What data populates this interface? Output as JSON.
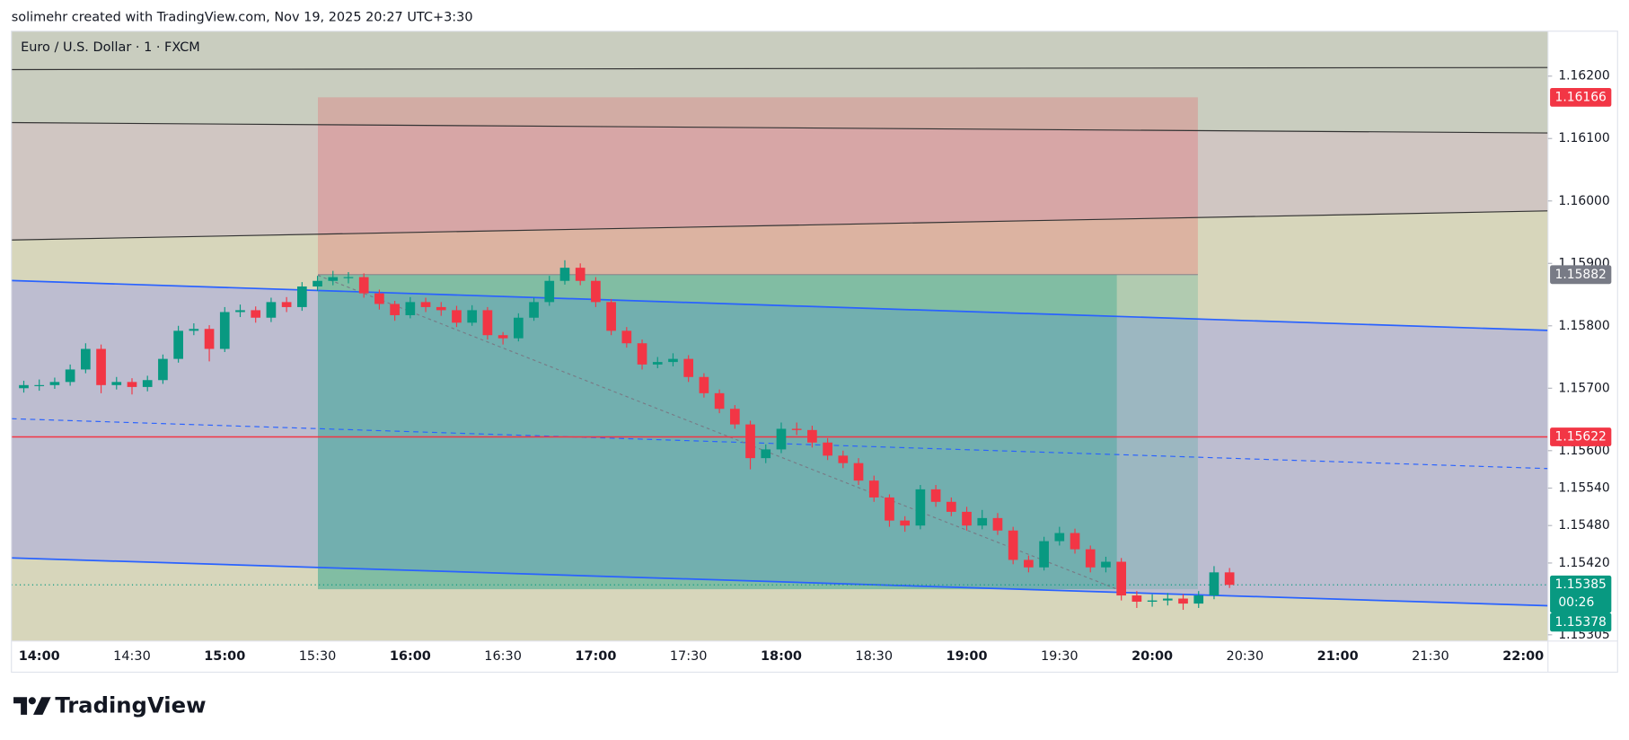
{
  "header": {
    "attribution": "solimehr created with TradingView.com, Nov 19, 2025 20:27 UTC+3:30",
    "logo": "TradingView"
  },
  "chart_data": {
    "type": "candlestick",
    "title": "Euro / U.S. Dollar · 1 · FXCM",
    "up_color": "#089981",
    "down_color": "#f23645",
    "x": [
      "13:55",
      "14:00",
      "14:05",
      "14:10",
      "14:15",
      "14:20",
      "14:25",
      "14:30",
      "14:35",
      "14:40",
      "14:45",
      "14:50",
      "14:55",
      "15:00",
      "15:05",
      "15:10",
      "15:15",
      "15:20",
      "15:25",
      "15:30",
      "15:35",
      "15:40",
      "15:45",
      "15:50",
      "15:55",
      "16:00",
      "16:05",
      "16:10",
      "16:15",
      "16:20",
      "16:25",
      "16:30",
      "16:35",
      "16:40",
      "16:45",
      "16:50",
      "16:55",
      "17:00",
      "17:05",
      "17:10",
      "17:15",
      "17:20",
      "17:25",
      "17:30",
      "17:35",
      "17:40",
      "17:45",
      "17:50",
      "17:55",
      "18:00",
      "18:05",
      "18:10",
      "18:15",
      "18:20",
      "18:25",
      "18:30",
      "18:35",
      "18:40",
      "18:45",
      "18:50",
      "18:55",
      "19:00",
      "19:05",
      "19:10",
      "19:15",
      "19:20",
      "19:25",
      "19:30",
      "19:35",
      "19:40",
      "19:45",
      "19:50",
      "19:55",
      "20:00",
      "20:05",
      "20:10",
      "20:15",
      "20:20",
      "20:25"
    ],
    "open": [
      1.157,
      1.15705,
      1.15705,
      1.1571,
      1.1573,
      1.15763,
      1.15705,
      1.1571,
      1.15702,
      1.15713,
      1.15747,
      1.15792,
      1.15795,
      1.15763,
      1.15822,
      1.15825,
      1.15813,
      1.15838,
      1.1583,
      1.15863,
      1.15872,
      1.15878,
      1.15878,
      1.15852,
      1.15835,
      1.15817,
      1.15838,
      1.1583,
      1.15825,
      1.15805,
      1.15825,
      1.15785,
      1.1578,
      1.15813,
      1.15838,
      1.15872,
      1.15893,
      1.15872,
      1.15838,
      1.15792,
      1.15772,
      1.15738,
      1.15742,
      1.15747,
      1.15718,
      1.15692,
      1.15667,
      1.15642,
      1.15588,
      1.15602,
      1.15635,
      1.15633,
      1.15613,
      1.15592,
      1.1558,
      1.15552,
      1.15525,
      1.15488,
      1.1548,
      1.15538,
      1.15518,
      1.15502,
      1.1548,
      1.15492,
      1.15472,
      1.15425,
      1.15413,
      1.15455,
      1.15468,
      1.15442,
      1.15413,
      1.15422,
      1.15368,
      1.15358,
      1.1536,
      1.15363,
      1.15355,
      1.15368,
      1.15405
    ],
    "high": [
      1.15712,
      1.15714,
      1.15717,
      1.15738,
      1.15772,
      1.1577,
      1.15718,
      1.15716,
      1.1572,
      1.15754,
      1.158,
      1.15804,
      1.15801,
      1.1583,
      1.15834,
      1.15831,
      1.15845,
      1.15846,
      1.1587,
      1.1588,
      1.15888,
      1.15886,
      1.15884,
      1.15858,
      1.1584,
      1.15846,
      1.15845,
      1.15838,
      1.15832,
      1.15833,
      1.1583,
      1.1579,
      1.1582,
      1.15845,
      1.1588,
      1.15905,
      1.159,
      1.15878,
      1.15843,
      1.15798,
      1.15778,
      1.1575,
      1.15756,
      1.15753,
      1.15724,
      1.15698,
      1.15673,
      1.15648,
      1.1561,
      1.15645,
      1.15645,
      1.1564,
      1.1562,
      1.156,
      1.15588,
      1.1556,
      1.1553,
      1.15495,
      1.15545,
      1.15545,
      1.15525,
      1.1551,
      1.15505,
      1.155,
      1.15478,
      1.15432,
      1.15462,
      1.15478,
      1.15475,
      1.15448,
      1.1543,
      1.15428,
      1.15375,
      1.1537,
      1.15372,
      1.1537,
      1.15375,
      1.15415,
      1.15412
    ],
    "low": [
      1.15693,
      1.15696,
      1.15699,
      1.15704,
      1.15724,
      1.15692,
      1.15698,
      1.1569,
      1.15695,
      1.15707,
      1.15741,
      1.15785,
      1.15743,
      1.15758,
      1.15814,
      1.15805,
      1.15806,
      1.15822,
      1.15824,
      1.15856,
      1.15865,
      1.15868,
      1.15845,
      1.15826,
      1.15808,
      1.15812,
      1.15822,
      1.15816,
      1.15798,
      1.158,
      1.15778,
      1.1577,
      1.15775,
      1.15808,
      1.15832,
      1.15866,
      1.15865,
      1.1583,
      1.15785,
      1.15765,
      1.1573,
      1.15732,
      1.15735,
      1.1571,
      1.15685,
      1.1566,
      1.15635,
      1.1557,
      1.1558,
      1.15596,
      1.15625,
      1.15605,
      1.15585,
      1.15572,
      1.15545,
      1.15518,
      1.15478,
      1.1547,
      1.15474,
      1.1551,
      1.15495,
      1.15472,
      1.15474,
      1.15465,
      1.15418,
      1.15405,
      1.15408,
      1.15448,
      1.15435,
      1.15405,
      1.15405,
      1.1536,
      1.15348,
      1.1535,
      1.15352,
      1.15345,
      1.15348,
      1.15362,
      1.1538
    ],
    "close": [
      1.15705,
      1.15705,
      1.1571,
      1.1573,
      1.15763,
      1.15705,
      1.1571,
      1.15702,
      1.15713,
      1.15747,
      1.15792,
      1.15795,
      1.15763,
      1.15822,
      1.15825,
      1.15813,
      1.15838,
      1.1583,
      1.15863,
      1.15872,
      1.15878,
      1.15878,
      1.15852,
      1.15835,
      1.15817,
      1.15838,
      1.1583,
      1.15825,
      1.15805,
      1.15825,
      1.15785,
      1.1578,
      1.15813,
      1.15838,
      1.15872,
      1.15893,
      1.15872,
      1.15838,
      1.15792,
      1.15772,
      1.15738,
      1.15742,
      1.15747,
      1.15718,
      1.15692,
      1.15667,
      1.15642,
      1.15588,
      1.15602,
      1.15635,
      1.15633,
      1.15613,
      1.15592,
      1.1558,
      1.15552,
      1.15525,
      1.15488,
      1.1548,
      1.15538,
      1.15518,
      1.15502,
      1.1548,
      1.15492,
      1.15472,
      1.15425,
      1.15413,
      1.15455,
      1.15468,
      1.15442,
      1.15413,
      1.15422,
      1.15368,
      1.15358,
      1.1536,
      1.15363,
      1.15355,
      1.15368,
      1.15405,
      1.15385
    ],
    "xlim": [
      "13:51",
      "22:08"
    ],
    "xticks": [
      "14:00",
      "14:30",
      "15:00",
      "15:30",
      "16:00",
      "16:30",
      "17:00",
      "17:30",
      "18:00",
      "18:30",
      "19:00",
      "19:30",
      "20:00",
      "20:30",
      "21:00",
      "21:30",
      "22:00"
    ],
    "ylim": [
      1.15295,
      1.16272
    ],
    "yticks": [
      {
        "value": 1.162,
        "label": "1.16200"
      },
      {
        "value": 1.161,
        "label": "1.16100"
      },
      {
        "value": 1.16,
        "label": "1.16000"
      },
      {
        "value": 1.159,
        "label": "1.15900"
      },
      {
        "value": 1.158,
        "label": "1.15800"
      },
      {
        "value": 1.157,
        "label": "1.15700"
      },
      {
        "value": 1.156,
        "label": "1.15600"
      },
      {
        "value": 1.1554,
        "label": "1.15540"
      },
      {
        "value": 1.1548,
        "label": "1.15480"
      },
      {
        "value": 1.1542,
        "label": "1.15420"
      },
      {
        "value": 1.15305,
        "label": "1.15305"
      }
    ],
    "price_labels": [
      {
        "value": 1.16166,
        "label": "1.16166",
        "color": "#f23645"
      },
      {
        "value": 1.15882,
        "label": "1.15882",
        "color": "#787b86"
      },
      {
        "value": 1.15622,
        "label": "1.15622",
        "color": "#f23645"
      },
      {
        "value": 1.15385,
        "label": "1.15385",
        "color": "#089981",
        "countdown": "00:26"
      },
      {
        "value": 1.15378,
        "label": "1.15378",
        "color": "#089981"
      }
    ]
  }
}
